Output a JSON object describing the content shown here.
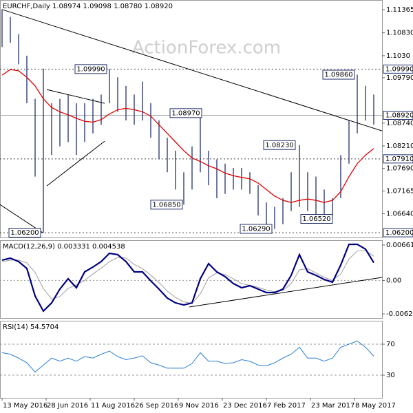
{
  "chart_data": [
    {
      "type": "hilo",
      "title": "EURCHF,Daily  1.08974 1.09098 1.08780 1.08920",
      "watermark": "ActionForex.com",
      "x": [
        0,
        6,
        12,
        18,
        24,
        30,
        36,
        42,
        48,
        54,
        60,
        66,
        72,
        78,
        84,
        90,
        96,
        102,
        108,
        114,
        120,
        126,
        132,
        138,
        144,
        150,
        156,
        162,
        168,
        174,
        180,
        186,
        192,
        198,
        204,
        210,
        216,
        222,
        228,
        234,
        240,
        246,
        252,
        258,
        264,
        270
      ],
      "high": [
        1.1137,
        1.112,
        1.108,
        1.103,
        1.093,
        1.1,
        1.092,
        1.093,
        1.094,
        1.092,
        1.092,
        1.093,
        1.094,
        1.0999,
        1.098,
        1.096,
        1.094,
        1.097,
        1.092,
        1.088,
        1.084,
        1.081,
        1.076,
        1.082,
        1.0897,
        1.081,
        1.079,
        1.078,
        1.077,
        1.077,
        1.076,
        1.073,
        1.069,
        1.068,
        1.07,
        1.076,
        1.0823,
        1.076,
        1.075,
        1.072,
        1.07,
        1.08,
        1.088,
        1.0986,
        1.096,
        1.094
      ],
      "low": [
        1.105,
        1.106,
        1.101,
        1.092,
        1.075,
        1.062,
        1.08,
        1.082,
        1.083,
        1.08,
        1.083,
        1.085,
        1.087,
        1.092,
        1.09,
        1.088,
        1.087,
        1.088,
        1.084,
        1.079,
        1.076,
        1.072,
        1.0685,
        1.072,
        1.076,
        1.073,
        1.07,
        1.071,
        1.072,
        1.072,
        1.071,
        1.066,
        1.064,
        1.0629,
        1.064,
        1.067,
        1.068,
        1.067,
        1.066,
        1.066,
        1.0652,
        1.07,
        1.078,
        1.085,
        1.088,
        1.087
      ],
      "color": "#1f2f6b",
      "ma": {
        "values": [
          1.0985,
          1.0998,
          1.0995,
          1.098,
          1.096,
          1.093,
          1.091,
          1.09,
          1.0893,
          1.0885,
          1.0878,
          1.0876,
          1.0882,
          1.0895,
          1.0905,
          1.0908,
          1.0905,
          1.09,
          1.089,
          1.087,
          1.085,
          1.083,
          1.081,
          1.0793,
          1.0785,
          1.0775,
          1.0768,
          1.0758,
          1.0752,
          1.0748,
          1.0745,
          1.0735,
          1.072,
          1.0705,
          1.0695,
          1.069,
          1.0695,
          1.0698,
          1.0695,
          1.069,
          1.0695,
          1.0715,
          1.075,
          1.078,
          1.08,
          1.0815
        ],
        "color": "#e00000"
      },
      "xlim": [
        -1.5,
        276
      ],
      "xticks": [
        {
          "value": 0,
          "label": "13 May 2016"
        },
        {
          "value": 32,
          "label": "28 Jun 2016"
        },
        {
          "value": 64,
          "label": "11 Aug 2016"
        },
        {
          "value": 96,
          "label": "26 Sep 2016"
        },
        {
          "value": 128,
          "label": "9 Nov 2016"
        },
        {
          "value": 160,
          "label": "23 Dec 2016"
        },
        {
          "value": 192,
          "label": "7 Feb 2017"
        },
        {
          "value": 224,
          "label": "23 Mar 2017"
        },
        {
          "value": 256,
          "label": "8 May 2017"
        }
      ],
      "ylim": [
        1.0609,
        1.1159
      ],
      "yticks": [
        {
          "value": 1.11365,
          "label": "1.11365"
        },
        {
          "value": 1.1083,
          "label": "1.10830"
        },
        {
          "value": 1.103,
          "label": "1.1030"
        },
        {
          "value": 1.0979,
          "label": "1.09790"
        },
        {
          "value": 1.0874,
          "label": "1.08740"
        },
        {
          "value": 1.0821,
          "label": "1.08210"
        },
        {
          "value": 1.0769,
          "label": "1.07690"
        },
        {
          "value": 1.07165,
          "label": "1.07165"
        },
        {
          "value": 1.0664,
          "label": "1.06640"
        }
      ],
      "levels": [
        {
          "value": 1.0999,
          "label": "1.09990"
        },
        {
          "value": 1.0791,
          "label": "1.07910"
        },
        {
          "value": 1.062,
          "label": "1.06200"
        }
      ],
      "last": {
        "value": 1.0892,
        "label": "1.08920"
      },
      "trendlines": [
        {
          "x": [
            0,
            276
          ],
          "y": [
            1.1137,
            1.08559
          ]
        },
        {
          "x": [
            -1.5,
            29.5
          ],
          "y": [
            1.06853,
            1.062
          ]
        },
        {
          "x": [
            32.5,
            74.5
          ],
          "y": [
            1.09516,
            1.09197
          ]
        },
        {
          "x": [
            32.5,
            74.5
          ],
          "y": [
            1.07284,
            1.0832
          ]
        }
      ],
      "annotations": [
        {
          "x": 77,
          "value": 1.0999,
          "label": "1.09990"
        },
        {
          "x": 146,
          "value": 1.0897,
          "label": "1.08970"
        },
        {
          "x": 132,
          "value": 1.0685,
          "label": "1.06850"
        },
        {
          "x": 197,
          "value": 1.0629,
          "label": "1.06290"
        },
        {
          "x": 214,
          "value": 1.0823,
          "label": "1.08230"
        },
        {
          "x": 241,
          "value": 1.0652,
          "label": "1.06520"
        },
        {
          "x": 257,
          "value": 1.0986,
          "label": "1.09860"
        },
        {
          "x": 29,
          "value": 1.062,
          "label": "1.06200"
        }
      ]
    },
    {
      "type": "macd",
      "title": "MACD(12,26,9) 0.003331 0.004538",
      "macd": {
        "values": [
          0.00379,
          0.00417,
          0.00353,
          0.00224,
          -0.00292,
          -0.00574,
          -0.0042,
          -0.00162,
          0.00031,
          -0.00137,
          0.0016,
          0.0025,
          0.00353,
          0.00507,
          0.00482,
          0.00353,
          0.0016,
          0.0016,
          -8e-05,
          -0.00162,
          -0.0033,
          -0.0042,
          -0.00459,
          -0.0042,
          0.00031,
          0.00314,
          0.0016,
          0.0007,
          -0.00059,
          -0.00137,
          -0.00098,
          -0.00162,
          -0.00227,
          -0.00227,
          -0.00162,
          0.00095,
          0.00482,
          0.0016,
          0.00095,
          0.00018,
          -0.00033,
          0.00288,
          0.00675,
          0.00675,
          0.00585,
          0.003331
        ],
        "color": "#000080"
      },
      "signal": {
        "values": [
          0.0035,
          0.0038,
          0.0038,
          0.0033,
          0.0015,
          -0.0015,
          -0.0035,
          -0.003,
          -0.0015,
          -0.0008,
          0,
          0.0012,
          0.0023,
          0.0035,
          0.0043,
          0.0042,
          0.003,
          0.0022,
          0.001,
          -0.0004,
          -0.002,
          -0.0032,
          -0.004,
          -0.0043,
          -0.0025,
          0.0005,
          0.0014,
          0.0011,
          0.0003,
          -0.0006,
          -0.0009,
          -0.0013,
          -0.0018,
          -0.0021,
          -0.0019,
          -0.0006,
          0.002,
          0.0022,
          0.0014,
          0.0006,
          0,
          0.0012,
          0.004,
          0.0055,
          0.0056,
          0.004538
        ],
        "color": "#a0a0a0"
      },
      "ylim": [
        -0.00703,
        0.00752
      ],
      "yticks": [
        {
          "value": 0.006618,
          "label": "0.006618"
        },
        {
          "value": 0,
          "label": "0.00"
        },
        {
          "value": -0.00626,
          "label": "-0.00626"
        }
      ],
      "trendlines": [
        {
          "x": [
            136,
            276
          ],
          "y": [
            -0.00497,
            0.00057
          ]
        }
      ]
    },
    {
      "type": "rsi",
      "title": "RSI(14) 54.5704",
      "values": [
        59,
        57,
        52,
        46,
        34,
        43,
        52,
        48,
        52,
        48,
        54,
        52,
        57,
        61,
        54,
        50,
        52,
        55,
        46,
        43,
        39,
        39,
        39,
        45,
        59,
        48,
        48,
        45,
        46,
        50,
        48,
        43,
        42,
        46,
        52,
        57,
        66,
        52,
        52,
        48,
        52,
        66,
        70,
        74,
        66,
        54.5704
      ],
      "color": "#2a7fd4",
      "ylim": [
        0.7,
        100.2
      ],
      "yticks": [
        70,
        30
      ]
    }
  ]
}
